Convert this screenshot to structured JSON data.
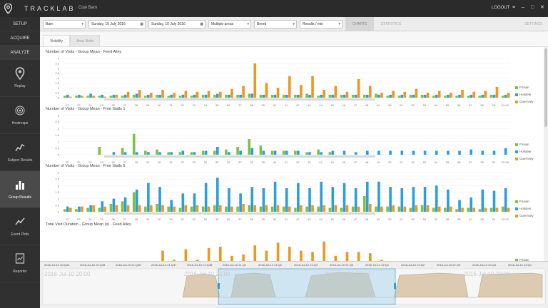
{
  "app": {
    "brand": "TRACKLAB",
    "subtitle": "Cow Barn",
    "logout": "LOGOUT",
    "window_buttons": [
      "≡",
      "–",
      "□",
      "✕"
    ]
  },
  "nav": {
    "tabs": [
      "SETUP",
      "ACQUIRE",
      "ANALYZE"
    ],
    "items": [
      {
        "label": "Replay",
        "icon": "location-pin-icon"
      },
      {
        "label": "Heatmaps",
        "icon": "heatmap-icon"
      },
      {
        "label": "Subject Results",
        "icon": "subject-results-icon"
      },
      {
        "label": "Group Results",
        "icon": "bar-chart-icon",
        "active": true
      },
      {
        "label": "Event Plots",
        "icon": "event-plots-icon"
      },
      {
        "label": "Reporter",
        "icon": "reporter-icon"
      }
    ]
  },
  "toolbar": {
    "barn": "Barn",
    "start_date": "Sunday, 10 July 2016",
    "end_date": "Sunday, 10 July 2016",
    "areas": "Multiple areas",
    "breed": "Breed",
    "results": "Results / min",
    "tabs": [
      "CHARTS",
      "STATISTICS",
      "SETTINGS"
    ]
  },
  "subtabs": [
    "Visibility",
    "Area Visits"
  ],
  "colors": {
    "frisian": "#7cc242",
    "holstein": "#2a9fd8",
    "guernsey": "#f0961e"
  },
  "x_labels": [
    "22",
    "23",
    "24",
    "25",
    "26",
    "27",
    "28",
    "29",
    "30",
    "31",
    "32",
    "33",
    "34",
    "35",
    "36",
    "37",
    "38",
    "39",
    "40",
    "41",
    "42",
    "43",
    "44",
    "45",
    "46",
    "47",
    "48",
    "49",
    "50",
    "51",
    "52",
    "53",
    "54",
    "55",
    "56",
    "57",
    "58",
    "59",
    "22:00"
  ],
  "charts": [
    {
      "title": "Number of Visits - Group Mean - Feed Alley",
      "yticks": [
        "4",
        "3.5",
        "3",
        "2.5",
        "2",
        "1.5",
        "1",
        "0.5",
        "0"
      ],
      "ymax": 4,
      "legend": [
        "Frisian",
        "Holstein",
        "Guernsey"
      ],
      "frisian": [
        0.2,
        0.2,
        0.2,
        0.2,
        0.2,
        0.2,
        0.3,
        0.2,
        0.3,
        0.2,
        0.2,
        0.2,
        0.3,
        0.3,
        0.3,
        0.3,
        0.4,
        0.3,
        0.3,
        0.3,
        0.3,
        0.4,
        0.2,
        0.3,
        0.3,
        0.3,
        0.3,
        0.4,
        0.2,
        0.2,
        0.3,
        0.3,
        0.2,
        0.2,
        0.2,
        0.2,
        0.2,
        0.3,
        0.2
      ],
      "holstein": [
        0.3,
        0.3,
        0.4,
        0.3,
        0.3,
        0.3,
        0.4,
        0.3,
        0.3,
        0.3,
        0.3,
        0.3,
        0.3,
        0.4,
        0.3,
        0.3,
        0.4,
        0.3,
        0.3,
        0.3,
        0.3,
        0.3,
        0.3,
        0.3,
        0.3,
        0.3,
        0.3,
        0.3,
        0.3,
        0.3,
        0.3,
        0.3,
        0.3,
        0.3,
        0.3,
        0.3,
        0.3,
        0.3,
        0.3
      ],
      "guernsey": [
        0.1,
        0.2,
        0.2,
        0.1,
        0.3,
        0.6,
        0.8,
        0.5,
        0.8,
        0.5,
        0.7,
        0.6,
        0.7,
        0.6,
        0.9,
        1.2,
        3.5,
        1.5,
        1.0,
        2.2,
        1.3,
        2.2,
        0.8,
        1.2,
        0.6,
        1.9,
        1.2,
        0.5,
        0.7,
        0.6,
        0.9,
        0.5,
        0.7,
        0.5,
        0.8,
        0.6,
        0.7,
        1.1,
        0.5
      ]
    },
    {
      "title": "Number of Visits - Group Mean - Free Stalls 1",
      "yticks": [
        "3",
        "2.5",
        "2",
        "1.5",
        "1",
        "0.5",
        "0"
      ],
      "ymax": 3,
      "legend": [
        "Frisian",
        "Holstein",
        "Guernsey"
      ],
      "frisian": [
        0,
        0,
        0,
        0.6,
        0,
        0.5,
        1.6,
        0.3,
        0.4,
        0.2,
        0.2,
        0.2,
        0.3,
        0.3,
        0.4,
        0.6,
        1.2,
        0.7,
        0.3,
        0.3,
        0.3,
        0.2,
        0.4,
        0.2,
        0,
        0,
        0,
        0,
        0,
        0,
        0,
        0,
        0,
        0,
        0,
        0,
        0,
        0,
        0
      ],
      "holstein": [
        0,
        0,
        0,
        0,
        0.2,
        0.2,
        0.2,
        0.2,
        0.2,
        0.2,
        0.3,
        0.2,
        0.3,
        0.6,
        0.2,
        0.3,
        0.5,
        0.3,
        0.3,
        0.3,
        0.3,
        0.2,
        0.2,
        0.3,
        0.3,
        0.2,
        0.3,
        0.3,
        0.3,
        0.3,
        0.3,
        0.3,
        0.3,
        0.3,
        0.3,
        0.4,
        0.3,
        0.3,
        0.5
      ],
      "guernsey": [
        0,
        0,
        0,
        0,
        0,
        0,
        0,
        0,
        0,
        0,
        0,
        0,
        0,
        0,
        0,
        0,
        0,
        0,
        0,
        0,
        0,
        0,
        0,
        0,
        0,
        0,
        0,
        0,
        0,
        0,
        0,
        0,
        0,
        0,
        0,
        0,
        0,
        0,
        0
      ]
    },
    {
      "title": "Number of Visits - Group Mean - Free Stalls 5",
      "yticks": [
        "3",
        "2.5",
        "2",
        "1.5",
        "1",
        "0.5",
        "0"
      ],
      "ymax": 3,
      "legend": [
        "Frisian",
        "Holstein",
        "Guernsey"
      ],
      "frisian": [
        0.2,
        0.2,
        0.3,
        0.3,
        0.6,
        0.8,
        1.5,
        0.4,
        0.6,
        0.4,
        0.3,
        0.4,
        0.4,
        0.5,
        0.4,
        0.4,
        0.5,
        0.4,
        0.4,
        0.4,
        0.3,
        0.4,
        0.4,
        0.3,
        0.3,
        0.4,
        1.2,
        0.4,
        0.4,
        0.4,
        0.3,
        0.5,
        0.3,
        0.3,
        0.2,
        0.3,
        0.2,
        0.3,
        0.4
      ],
      "holstein": [
        0.4,
        0.4,
        0.5,
        0.8,
        1.0,
        1.1,
        1.7,
        2.2,
        1.9,
        0.9,
        1.4,
        1.4,
        2.2,
        2.6,
        1.8,
        1.4,
        1.9,
        1.8,
        2.3,
        1.8,
        2.2,
        1.8,
        2.3,
        1.9,
        2.2,
        1.8,
        2.3,
        2.3,
        1.9,
        1.8,
        1.9,
        1.9,
        2.0,
        1.7,
        0.9,
        1.1,
        1.7,
        1.6,
        1.8
      ],
      "guernsey": [
        0.3,
        0.4,
        0.5,
        0.4,
        0.5,
        0.5,
        0.5,
        0.5,
        0.5,
        0.4,
        0.5,
        0.5,
        0.4,
        0.5,
        0.4,
        0.6,
        0.5,
        0.5,
        0.5,
        0.4,
        0.5,
        0.5,
        0.5,
        0.5,
        0.5,
        0.4,
        0.6,
        0.4,
        0.5,
        0.4,
        0.5,
        0.5,
        0.4,
        0.4,
        0.3,
        0.3,
        0.3,
        0.3,
        0.3
      ]
    },
    {
      "title": "Total Visit Duration - Group Mean (s) - Feed Alley",
      "yticks": [],
      "ymax": 3,
      "legend": [
        "Frisian",
        "Holstein"
      ],
      "frisian": [
        0,
        0,
        0,
        0,
        0,
        0,
        0,
        0,
        0,
        0,
        0,
        0,
        0,
        0,
        0,
        0,
        0,
        0,
        0,
        0,
        0,
        0,
        0,
        0,
        0,
        0,
        0,
        0,
        0,
        0,
        0,
        0,
        0,
        0,
        0,
        0,
        0,
        0,
        0
      ],
      "holstein": [
        0,
        0,
        0,
        0,
        0,
        0,
        0,
        0,
        0,
        0,
        0,
        0,
        0,
        0,
        0,
        0,
        0,
        0,
        0,
        0,
        0,
        0,
        0,
        0,
        0,
        0,
        0,
        0,
        0,
        0,
        0,
        0,
        0,
        0,
        0,
        0,
        0,
        0,
        0
      ],
      "guernsey": [
        0,
        0,
        0,
        0,
        0,
        0.5,
        0.7,
        0.5,
        1.5,
        0.8,
        1.6,
        0.8,
        1.7,
        1.8,
        1.1,
        1.2,
        1.9,
        1.5,
        2.1,
        1.8,
        1.5,
        1.4,
        2.2,
        1.1,
        1.4,
        1.4,
        1.3,
        0.8,
        0.5,
        0.4,
        0,
        0,
        0,
        0,
        0,
        0,
        0,
        0,
        0
      ]
    }
  ],
  "timeline": {
    "labels": [
      "2016-Jul-10 20:Q44",
      "2016-Jul-10 20:Q45",
      "2016-Jul-10 21:Q46",
      "2016-Jul-10 21:Q47",
      "2016-Jul-10 21:Q48",
      "2016-Jul-10 21:Q1",
      "2016-Jul-10 21:Q2",
      "2016-Jul-10 21:Q3",
      "2016-Jul-10 21:Q4",
      "2016-Jul-10 22:Q1",
      "2016-Jul-10 22:Q2",
      "2016-Jul-10 22:Q3",
      "2016-Jul-10 22:Q4",
      "2016-Jul-10 23:Q1"
    ],
    "big_labels": [
      "2016-Jul-10 20:00",
      "2016-Jul-10 21:00",
      "2016-Jul-10 22:00",
      "2016-Jul-10 23:00"
    ]
  }
}
